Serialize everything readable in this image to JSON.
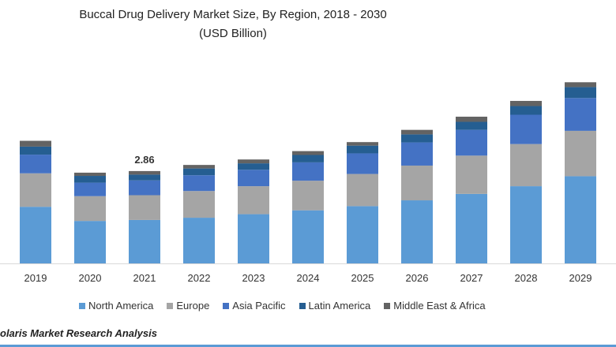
{
  "chart_data": {
    "type": "stacked-bar",
    "title": "Buccal Drug Delivery Market Size, By Region, 2018 - 2030",
    "subtitle": "(USD Billion)",
    "xlabel": "",
    "ylabel": "",
    "categories": [
      "2019",
      "2020",
      "2021",
      "2022",
      "2023",
      "2024",
      "2025",
      "2026",
      "2027",
      "2028",
      "2029"
    ],
    "ylim": [
      0,
      6
    ],
    "grid": false,
    "legend": "bottom",
    "series": [
      {
        "name": "North America",
        "color": "#5b9bd5",
        "values": [
          1.76,
          1.32,
          1.35,
          1.42,
          1.53,
          1.65,
          1.78,
          1.96,
          2.16,
          2.4,
          2.71
        ]
      },
      {
        "name": "Europe",
        "color": "#a5a5a5",
        "values": [
          1.04,
          0.77,
          0.77,
          0.83,
          0.87,
          0.92,
          1.0,
          1.08,
          1.19,
          1.31,
          1.41
        ]
      },
      {
        "name": "Asia Pacific",
        "color": "#4472c4",
        "values": [
          0.58,
          0.42,
          0.46,
          0.49,
          0.51,
          0.57,
          0.64,
          0.72,
          0.8,
          0.91,
          1.02
        ]
      },
      {
        "name": "Latin America",
        "color": "#255e91",
        "values": [
          0.25,
          0.21,
          0.18,
          0.21,
          0.2,
          0.23,
          0.24,
          0.25,
          0.25,
          0.27,
          0.34
        ]
      },
      {
        "name": "Middle East & Africa",
        "color": "#636363",
        "values": [
          0.18,
          0.1,
          0.11,
          0.11,
          0.12,
          0.12,
          0.11,
          0.14,
          0.16,
          0.16,
          0.15
        ]
      }
    ],
    "annotations": [
      {
        "category": "2021",
        "text": "2.86"
      }
    ]
  },
  "footer": "olaris  Market Research Analysis"
}
